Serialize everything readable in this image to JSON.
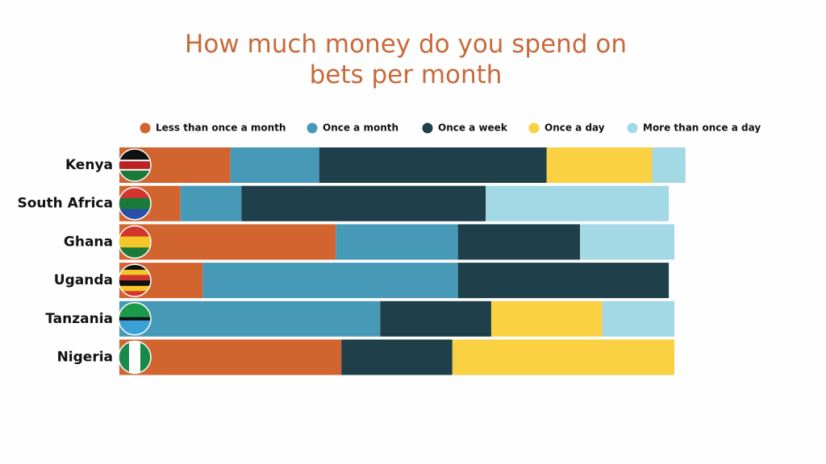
{
  "chart_data": {
    "type": "stacked-bar",
    "orientation": "horizontal",
    "title": "How much money do you spend on bets per month",
    "categories": [
      "Kenya",
      "South Africa",
      "Ghana",
      "Uganda",
      "Tanzania",
      "Nigeria"
    ],
    "series": [
      {
        "name": "Less than once a month",
        "color": "#d2642f",
        "values": [
          20,
          11,
          39,
          15,
          0,
          40
        ]
      },
      {
        "name": "Once a month",
        "color": "#4799b8",
        "values": [
          16,
          11,
          22,
          46,
          47,
          0
        ]
      },
      {
        "name": "Once a week",
        "color": "#1f3f4a",
        "values": [
          41,
          44,
          22,
          38,
          20,
          20
        ]
      },
      {
        "name": "Once a day",
        "color": "#f9d142",
        "values": [
          19,
          0,
          0,
          0,
          20,
          40
        ]
      },
      {
        "name": "More than once a day",
        "color": "#a3d8e5",
        "values": [
          6,
          33,
          17,
          0,
          13,
          0
        ]
      }
    ],
    "xlim": [
      0,
      100
    ]
  }
}
